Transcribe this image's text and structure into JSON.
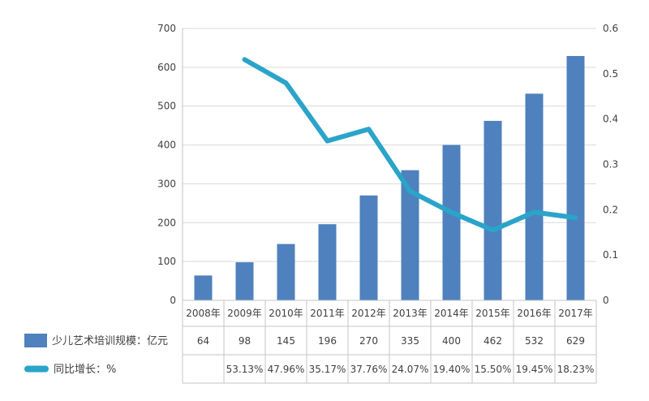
{
  "chart_data": {
    "type": "bar+line combo",
    "categories": [
      "2008年",
      "2009年",
      "2010年",
      "2011年",
      "2012年",
      "2013年",
      "2014年",
      "2015年",
      "2016年",
      "2017年"
    ],
    "series": [
      {
        "name": "少儿艺术培训规模：亿元",
        "type": "bar",
        "axis": "left",
        "color": "#4e81bd",
        "values": [
          64,
          98,
          145,
          196,
          270,
          335,
          400,
          462,
          532,
          629
        ],
        "labels": [
          "64",
          "98",
          "145",
          "196",
          "270",
          "335",
          "400",
          "462",
          "532",
          "629"
        ]
      },
      {
        "name": "同比增长：%",
        "type": "line",
        "axis": "right",
        "color": "#2aa4c9",
        "values": [
          null,
          0.5313,
          0.4796,
          0.3517,
          0.3776,
          0.2407,
          0.194,
          0.155,
          0.1945,
          0.1823
        ],
        "labels": [
          "",
          "53.13%",
          "47.96%",
          "35.17%",
          "37.76%",
          "24.07%",
          "19.40%",
          "15.50%",
          "19.45%",
          "18.23%"
        ]
      }
    ],
    "left_axis": {
      "min": 0,
      "max": 700,
      "step": 100,
      "ticks": [
        "0",
        "100",
        "200",
        "300",
        "400",
        "500",
        "600",
        "700"
      ]
    },
    "right_axis": {
      "min": 0,
      "max": 0.6,
      "step": 0.1,
      "ticks": [
        "0",
        "0.1",
        "0.2",
        "0.3",
        "0.4",
        "0.5",
        "0.6"
      ]
    },
    "grid": true,
    "legend_position": "bottom-table",
    "colors": {
      "gridline": "#d9d9d9",
      "axis_line": "#bfbfbf",
      "table_border": "#c6c6c6",
      "text": "#404040",
      "background": "#ffffff"
    }
  }
}
